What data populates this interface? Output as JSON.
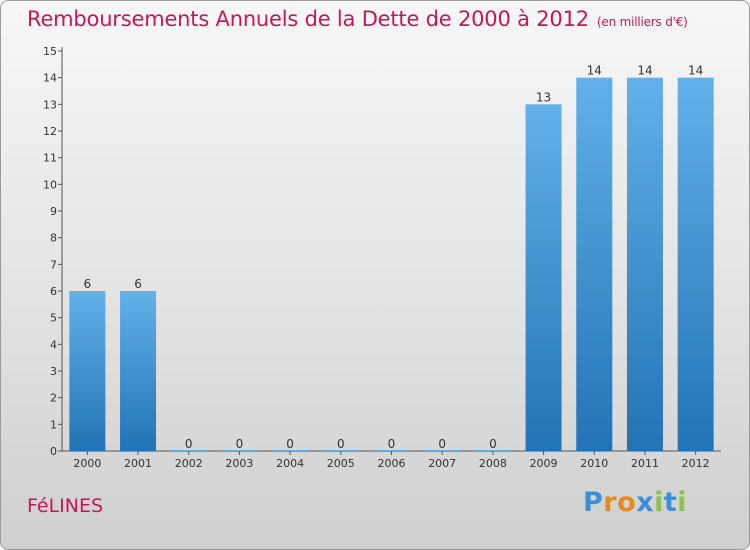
{
  "header": {
    "title": "Remboursements Annuels de la Dette de 2000 à 2012",
    "subtitle": "(en milliers d'€)"
  },
  "footer": {
    "commune": "FéLINES",
    "logo_letters": [
      {
        "char": "P",
        "color": "#3b8fd6"
      },
      {
        "char": "r",
        "color": "#e38a1d"
      },
      {
        "char": "o",
        "color": "#e38a1d"
      },
      {
        "char": "x",
        "color": "#3b8fd6"
      },
      {
        "char": "i",
        "color": "#8bc34a"
      },
      {
        "char": "t",
        "color": "#3b8fd6"
      },
      {
        "char": "i",
        "color": "#8bc34a"
      }
    ]
  },
  "colors": {
    "bar_top": "#62b1ea",
    "bar_bottom": "#2273b5",
    "accent": "#c2185b"
  },
  "chart_data": {
    "type": "bar",
    "categories": [
      "2000",
      "2001",
      "2002",
      "2003",
      "2004",
      "2005",
      "2006",
      "2007",
      "2008",
      "2009",
      "2010",
      "2011",
      "2012"
    ],
    "values": [
      6,
      6,
      0,
      0,
      0,
      0,
      0,
      0,
      0,
      13,
      14,
      14,
      14
    ],
    "data_labels": [
      "6",
      "6",
      "0",
      "0",
      "0",
      "0",
      "0",
      "0",
      "0",
      "13",
      "14",
      "14",
      "14"
    ],
    "y_ticks": [
      0,
      1,
      2,
      3,
      4,
      5,
      6,
      7,
      8,
      9,
      10,
      11,
      12,
      13,
      14,
      15
    ],
    "ylim": [
      0,
      15
    ],
    "xlabel": "",
    "ylabel": "",
    "grid": false,
    "legend": "none"
  }
}
